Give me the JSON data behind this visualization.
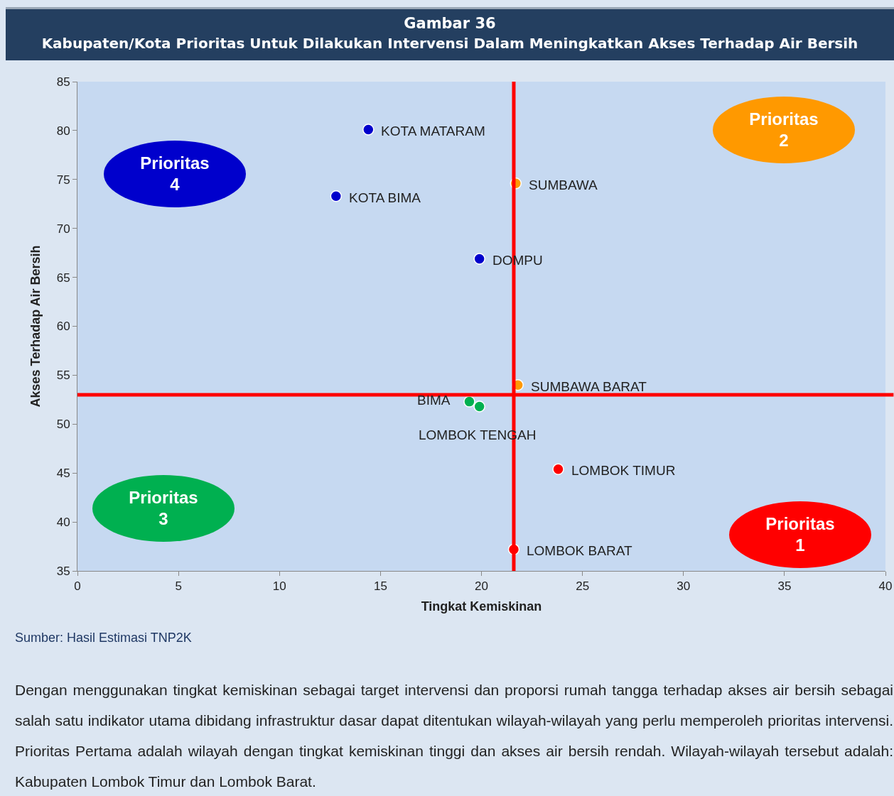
{
  "chart_data": {
    "type": "scatter",
    "title": "Gambar 36",
    "subtitle": "Kabupaten/Kota Prioritas Untuk Dilakukan Intervensi Dalam Meningkatkan Akses Terhadap Air Bersih",
    "xlabel": "Tingkat Kemiskinan",
    "ylabel": "Akses Terhadap Air Bersih",
    "xlim": [
      0,
      40
    ],
    "xticks": [
      0,
      5,
      10,
      15,
      20,
      25,
      30,
      35,
      40
    ],
    "ylim": [
      35,
      85
    ],
    "yticks": [
      35,
      40,
      45,
      50,
      55,
      60,
      65,
      70,
      75,
      80,
      85
    ],
    "marker": "circle",
    "series": [
      {
        "color": "#ff0000",
        "x": [
          23.8,
          21.6
        ],
        "values": [
          45.4,
          37.2
        ]
      },
      {
        "color": "#ff9900",
        "x": [
          21.7,
          21.8
        ],
        "values": [
          74.6,
          54.0
        ]
      },
      {
        "color": "#00b050",
        "x": [
          19.4,
          19.9
        ],
        "values": [
          52.3,
          51.8
        ]
      },
      {
        "color": "#0000cc",
        "x": [
          14.4,
          12.8,
          19.9
        ],
        "values": [
          80.1,
          73.3,
          66.9
        ]
      }
    ],
    "ref_lines": [
      {
        "axis": "x",
        "value": 21.6,
        "color": "#ff0000"
      },
      {
        "axis": "y",
        "value": 53,
        "color": "#ff0000"
      }
    ],
    "annotations": [
      {
        "text": "LOMBOK TIMUR",
        "x": 23.8,
        "y": 45.4
      },
      {
        "text": "LOMBOK BARAT",
        "x": 21.6,
        "y": 37.2
      },
      {
        "text": "SUMBAWA",
        "x": 21.7,
        "y": 74.6
      },
      {
        "text": "SUMBAWA BARAT",
        "x": 21.8,
        "y": 54.0
      },
      {
        "text": "BIMA",
        "x": 19.4,
        "y": 52.3
      },
      {
        "text": "LOMBOK TENGAH",
        "x": 19.9,
        "y": 51.8
      },
      {
        "text": "KOTA MATARAM",
        "x": 14.4,
        "y": 80.1
      },
      {
        "text": "KOTA BIMA",
        "x": 12.8,
        "y": 73.3
      },
      {
        "text": "DOMPU",
        "x": 19.9,
        "y": 66.9
      },
      "Prioritas\n1",
      "Prioritas\n2",
      "Prioritas\n3",
      "Prioritas\n4",
      "Sumber: Hasil Estimasi TNP2K",
      "Dengan menggunakan tingkat kemiskinan sebagai target intervensi dan proporsi rumah tangga terhadap akses air bersih sebagai salah satu indikator utama dibidang infrastruktur dasar dapat ditentukan wilayah-wilayah yang perlu memperoleh prioritas intervensi. Prioritas Pertama adalah wilayah dengan tingkat kemiskinan tinggi dan akses air bersih rendah. Wilayah-wilayah tersebut adalah: Kabupaten Lombok Timur dan Lombok Barat."
    ]
  }
}
